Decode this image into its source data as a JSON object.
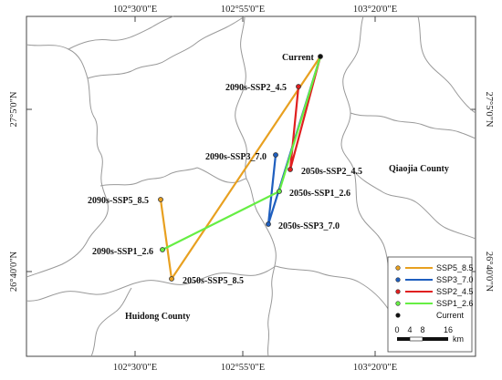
{
  "axes": {
    "top_ticks": [
      "102°30'0\"E",
      "102°55'0\"E",
      "103°20'0\"E"
    ],
    "bottom_ticks": [
      "102°30'0\"E",
      "102°55'0\"E",
      "103°20'0\"E"
    ],
    "left_ticks": [
      "27°5'0\"N",
      "26°40'0\"N"
    ],
    "right_ticks": [
      "27°5'0\"N",
      "26°40'0\"N"
    ]
  },
  "counties": [
    {
      "id": "qiaojia",
      "name": "Qiaojia County"
    },
    {
      "id": "huidong",
      "name": "Huidong County"
    }
  ],
  "points": [
    {
      "id": "current",
      "label": "Current",
      "color": "#111111"
    },
    {
      "id": "2090s-ssp2",
      "label": "2090s-SSP2_4.5",
      "color": "#e02020"
    },
    {
      "id": "2090s-ssp3",
      "label": "2090s-SSP3_7.0",
      "color": "#1f5fbf"
    },
    {
      "id": "2050s-ssp2",
      "label": "2050s-SSP2_4.5",
      "color": "#e02020"
    },
    {
      "id": "2050s-ssp1",
      "label": "2050s-SSP1_2.6",
      "color": "#66ee44"
    },
    {
      "id": "2050s-ssp3",
      "label": "2050s-SSP3_7.0",
      "color": "#1f5fbf"
    },
    {
      "id": "2090s-ssp5",
      "label": "2090s-SSP5_8.5",
      "color": "#e8a020"
    },
    {
      "id": "2090s-ssp1",
      "label": "2090s-SSP1_2.6",
      "color": "#66ee44"
    },
    {
      "id": "2050s-ssp5",
      "label": "2050s-SSP5_8.5",
      "color": "#e8a020"
    }
  ],
  "legend": [
    {
      "label": "SSP5_8.5",
      "color": "#e8a020"
    },
    {
      "label": "SSP3_7.0",
      "color": "#1f5fbf"
    },
    {
      "label": "SSP2_4.5",
      "color": "#e02020"
    },
    {
      "label": "SSP1_2.6",
      "color": "#66ee44"
    },
    {
      "label": "Current",
      "color": "#111111"
    }
  ],
  "scalebar": {
    "ticks": [
      "0",
      "4",
      "8",
      "16"
    ],
    "unit": "km"
  },
  "colors": {
    "boundary": "#999999",
    "frame": "#555555"
  }
}
